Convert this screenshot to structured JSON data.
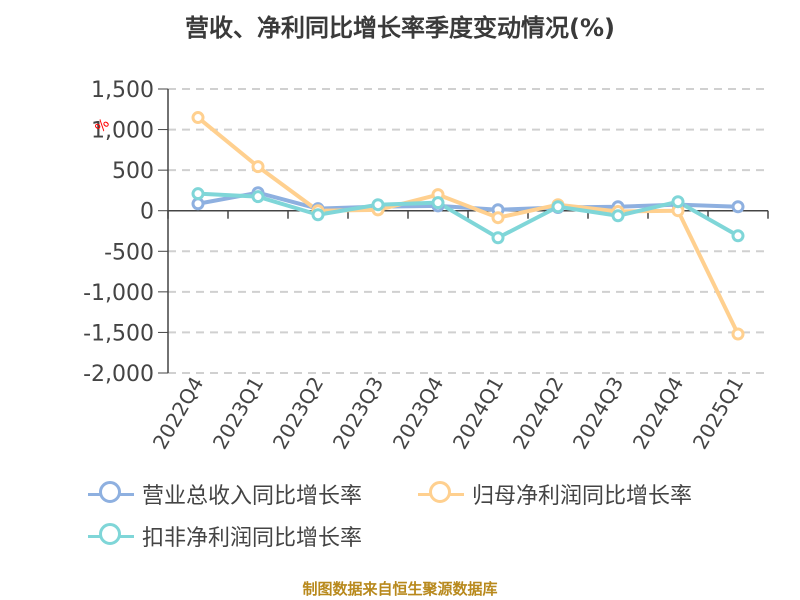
{
  "title": "营收、净利同比增长率季度变动情况(%)",
  "unit_label": "%",
  "footer": "制图数据来自恒生聚源数据库",
  "legend": [
    {
      "label": "营业总收入同比增长率",
      "color": "#8eb0e0"
    },
    {
      "label": "归母净利润同比增长率",
      "color": "#ffd08f"
    },
    {
      "label": "扣非净利润同比增长率",
      "color": "#7fd6d8"
    }
  ],
  "chart_data": {
    "type": "line",
    "title": "营收、净利同比增长率季度变动情况(%)",
    "xlabel": "",
    "ylabel": "%",
    "categories": [
      "2022Q4",
      "2023Q1",
      "2023Q2",
      "2023Q3",
      "2023Q4",
      "2024Q1",
      "2024Q2",
      "2024Q3",
      "2024Q4",
      "2025Q1"
    ],
    "ylim": [
      -2000,
      1500
    ],
    "yticks": [
      1500,
      1000,
      500,
      0,
      -500,
      -1000,
      -1500,
      -2000
    ],
    "ytick_labels": [
      "1,500",
      "1,000",
      "500",
      "0",
      "-500",
      "-1,000",
      "-1,500",
      "-2,000"
    ],
    "grid": true,
    "legend_position": "bottom",
    "series": [
      {
        "name": "营业总收入同比增长率",
        "color": "#8eb0e0",
        "values": [
          86,
          222,
          25,
          50,
          60,
          12,
          40,
          49,
          75,
          49
        ]
      },
      {
        "name": "归母净利润同比增长率",
        "color": "#ffd08f",
        "values": [
          1148,
          543,
          0,
          10,
          198,
          -86,
          74,
          -10,
          0,
          -1519
        ]
      },
      {
        "name": "扣非净利润同比增长率",
        "color": "#7fd6d8",
        "values": [
          210,
          173,
          -50,
          74,
          99,
          -333,
          49,
          -62,
          111,
          -309
        ]
      }
    ]
  }
}
